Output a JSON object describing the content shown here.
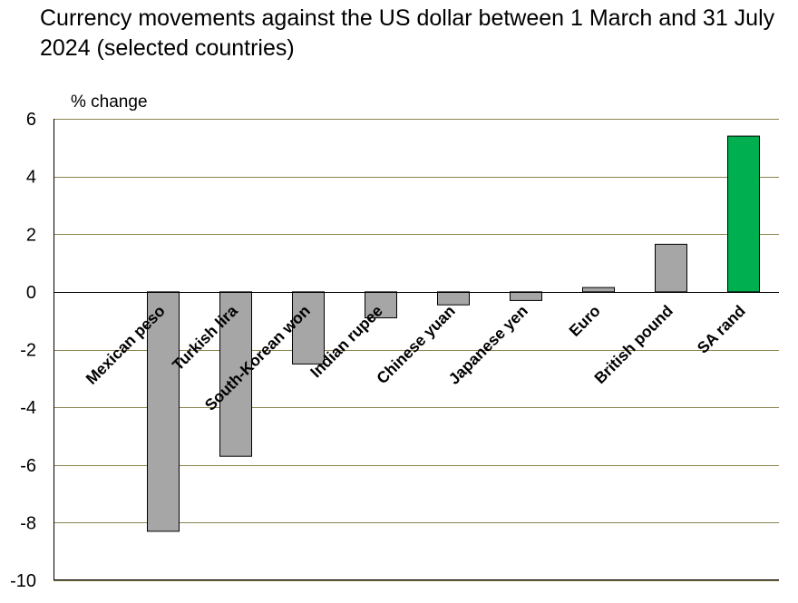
{
  "title": "Currency movements against the US dollar between 1 March and 31 July 2024 (selected countries)",
  "chart_data": {
    "type": "bar",
    "title": "Currency movements against the US dollar between 1 March and 31 July 2024 (selected countries)",
    "ylabel": "% change",
    "xlabel": "",
    "ylim": [
      -10,
      6
    ],
    "yticks": [
      6,
      4,
      2,
      0,
      -2,
      -4,
      -6,
      -8,
      -10
    ],
    "grid": true,
    "categories": [
      "Mexican peso",
      "Turkish lira",
      "South-Korean won",
      "Indian rupee",
      "Chinese yuan",
      "Japanese yen",
      "Euro",
      "British pound",
      "SA rand"
    ],
    "values": [
      -8.3,
      -5.7,
      -2.5,
      -0.9,
      -0.45,
      -0.3,
      0.15,
      1.65,
      5.4
    ],
    "colors": {
      "default_bar": "#a6a6a6",
      "highlight_bar": "#00b050",
      "gridline": "#8c8450",
      "axis": "#000000"
    },
    "highlight_category": "SA rand"
  }
}
